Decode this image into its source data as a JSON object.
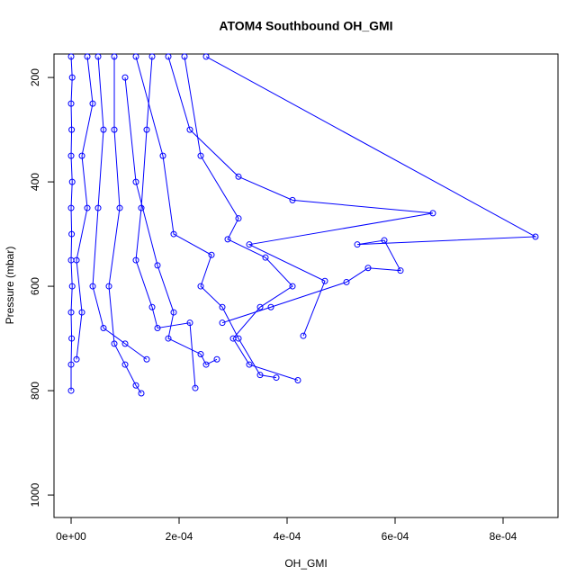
{
  "chart_data": {
    "type": "line_points",
    "title": "ATOM4 Southbound OH_GMI",
    "x_label": "OH_GMI",
    "y_label": "Pressure (mbar)",
    "xlim": [
      -3.17e-05,
      0.0009017
    ],
    "ylim": [
      155,
      1043
    ],
    "y_reverse": true,
    "xticks": [
      {
        "value": 0,
        "label": "0e+00"
      },
      {
        "value": 0.0002,
        "label": "2e-04"
      },
      {
        "value": 0.0004,
        "label": "4e-04"
      },
      {
        "value": 0.0006,
        "label": "6e-04"
      },
      {
        "value": 0.0008,
        "label": "8e-04"
      }
    ],
    "yticks": [
      200,
      400,
      600,
      800,
      1000
    ],
    "series": [
      {
        "color": "#0000ff",
        "x": [
          0,
          2e-06,
          0,
          1e-06,
          0,
          2e-06,
          0,
          1e-06,
          0,
          2e-06,
          0,
          1e-06,
          0,
          0
        ],
        "values": [
          160,
          200,
          250,
          300,
          350,
          400,
          450,
          500,
          550,
          600,
          650,
          700,
          750,
          800
        ]
      },
      {
        "color": "#0000ff",
        "x": [
          3e-05,
          4e-05,
          2e-05,
          3e-05,
          1e-05,
          2e-05,
          1e-05
        ],
        "values": [
          160,
          250,
          350,
          450,
          550,
          650,
          740
        ]
      },
      {
        "color": "#0000ff",
        "x": [
          8e-05,
          8e-05,
          9e-05,
          7e-05,
          8e-05,
          0.0001,
          0.00012,
          0.00013
        ],
        "values": [
          160,
          300,
          450,
          600,
          710,
          750,
          790,
          805
        ]
      },
      {
        "color": "#0000ff",
        "x": [
          0.00015,
          0.00014,
          0.00013,
          0.00012,
          0.00015,
          0.00016,
          0.00022,
          0.00023
        ],
        "values": [
          160,
          300,
          450,
          550,
          640,
          680,
          670,
          795
        ]
      },
      {
        "color": "#0000ff",
        "x": [
          0.00018,
          0.00022,
          0.00031,
          0.00041,
          0.00067,
          0.00033,
          0.00047,
          0.00043
        ],
        "values": [
          160,
          300,
          390,
          435,
          460,
          520,
          590,
          695
        ]
      },
      {
        "color": "#0000ff",
        "x": [
          0.00025,
          0.00086,
          0.00053,
          0.00058,
          0.00061,
          0.00055,
          0.00051,
          0.00037,
          0.00028
        ],
        "values": [
          160,
          505,
          520,
          512,
          570,
          565,
          592,
          640,
          670
        ]
      },
      {
        "color": "#0000ff",
        "x": [
          0.00021,
          0.00024,
          0.00031,
          0.00029,
          0.00036,
          0.00041,
          0.00035,
          0.0003,
          0.00033,
          0.00042
        ],
        "values": [
          160,
          350,
          470,
          510,
          545,
          600,
          640,
          700,
          750,
          780
        ]
      },
      {
        "color": "#0000ff",
        "x": [
          0.00012,
          0.00017,
          0.00019,
          0.00026,
          0.00024,
          0.00028,
          0.00031,
          0.00035,
          0.00038
        ],
        "values": [
          160,
          350,
          500,
          540,
          600,
          640,
          700,
          770,
          775
        ]
      },
      {
        "color": "#0000ff",
        "x": [
          5e-05,
          6e-05,
          5e-05,
          4e-05,
          6e-05,
          0.0001,
          0.00014
        ],
        "values": [
          160,
          300,
          450,
          600,
          680,
          710,
          740
        ]
      },
      {
        "color": "#0000ff",
        "x": [
          0.0001,
          0.00012,
          0.00016,
          0.00019,
          0.00018,
          0.00024,
          0.00025,
          0.00027
        ],
        "values": [
          200,
          400,
          560,
          650,
          700,
          730,
          750,
          740
        ]
      }
    ]
  }
}
